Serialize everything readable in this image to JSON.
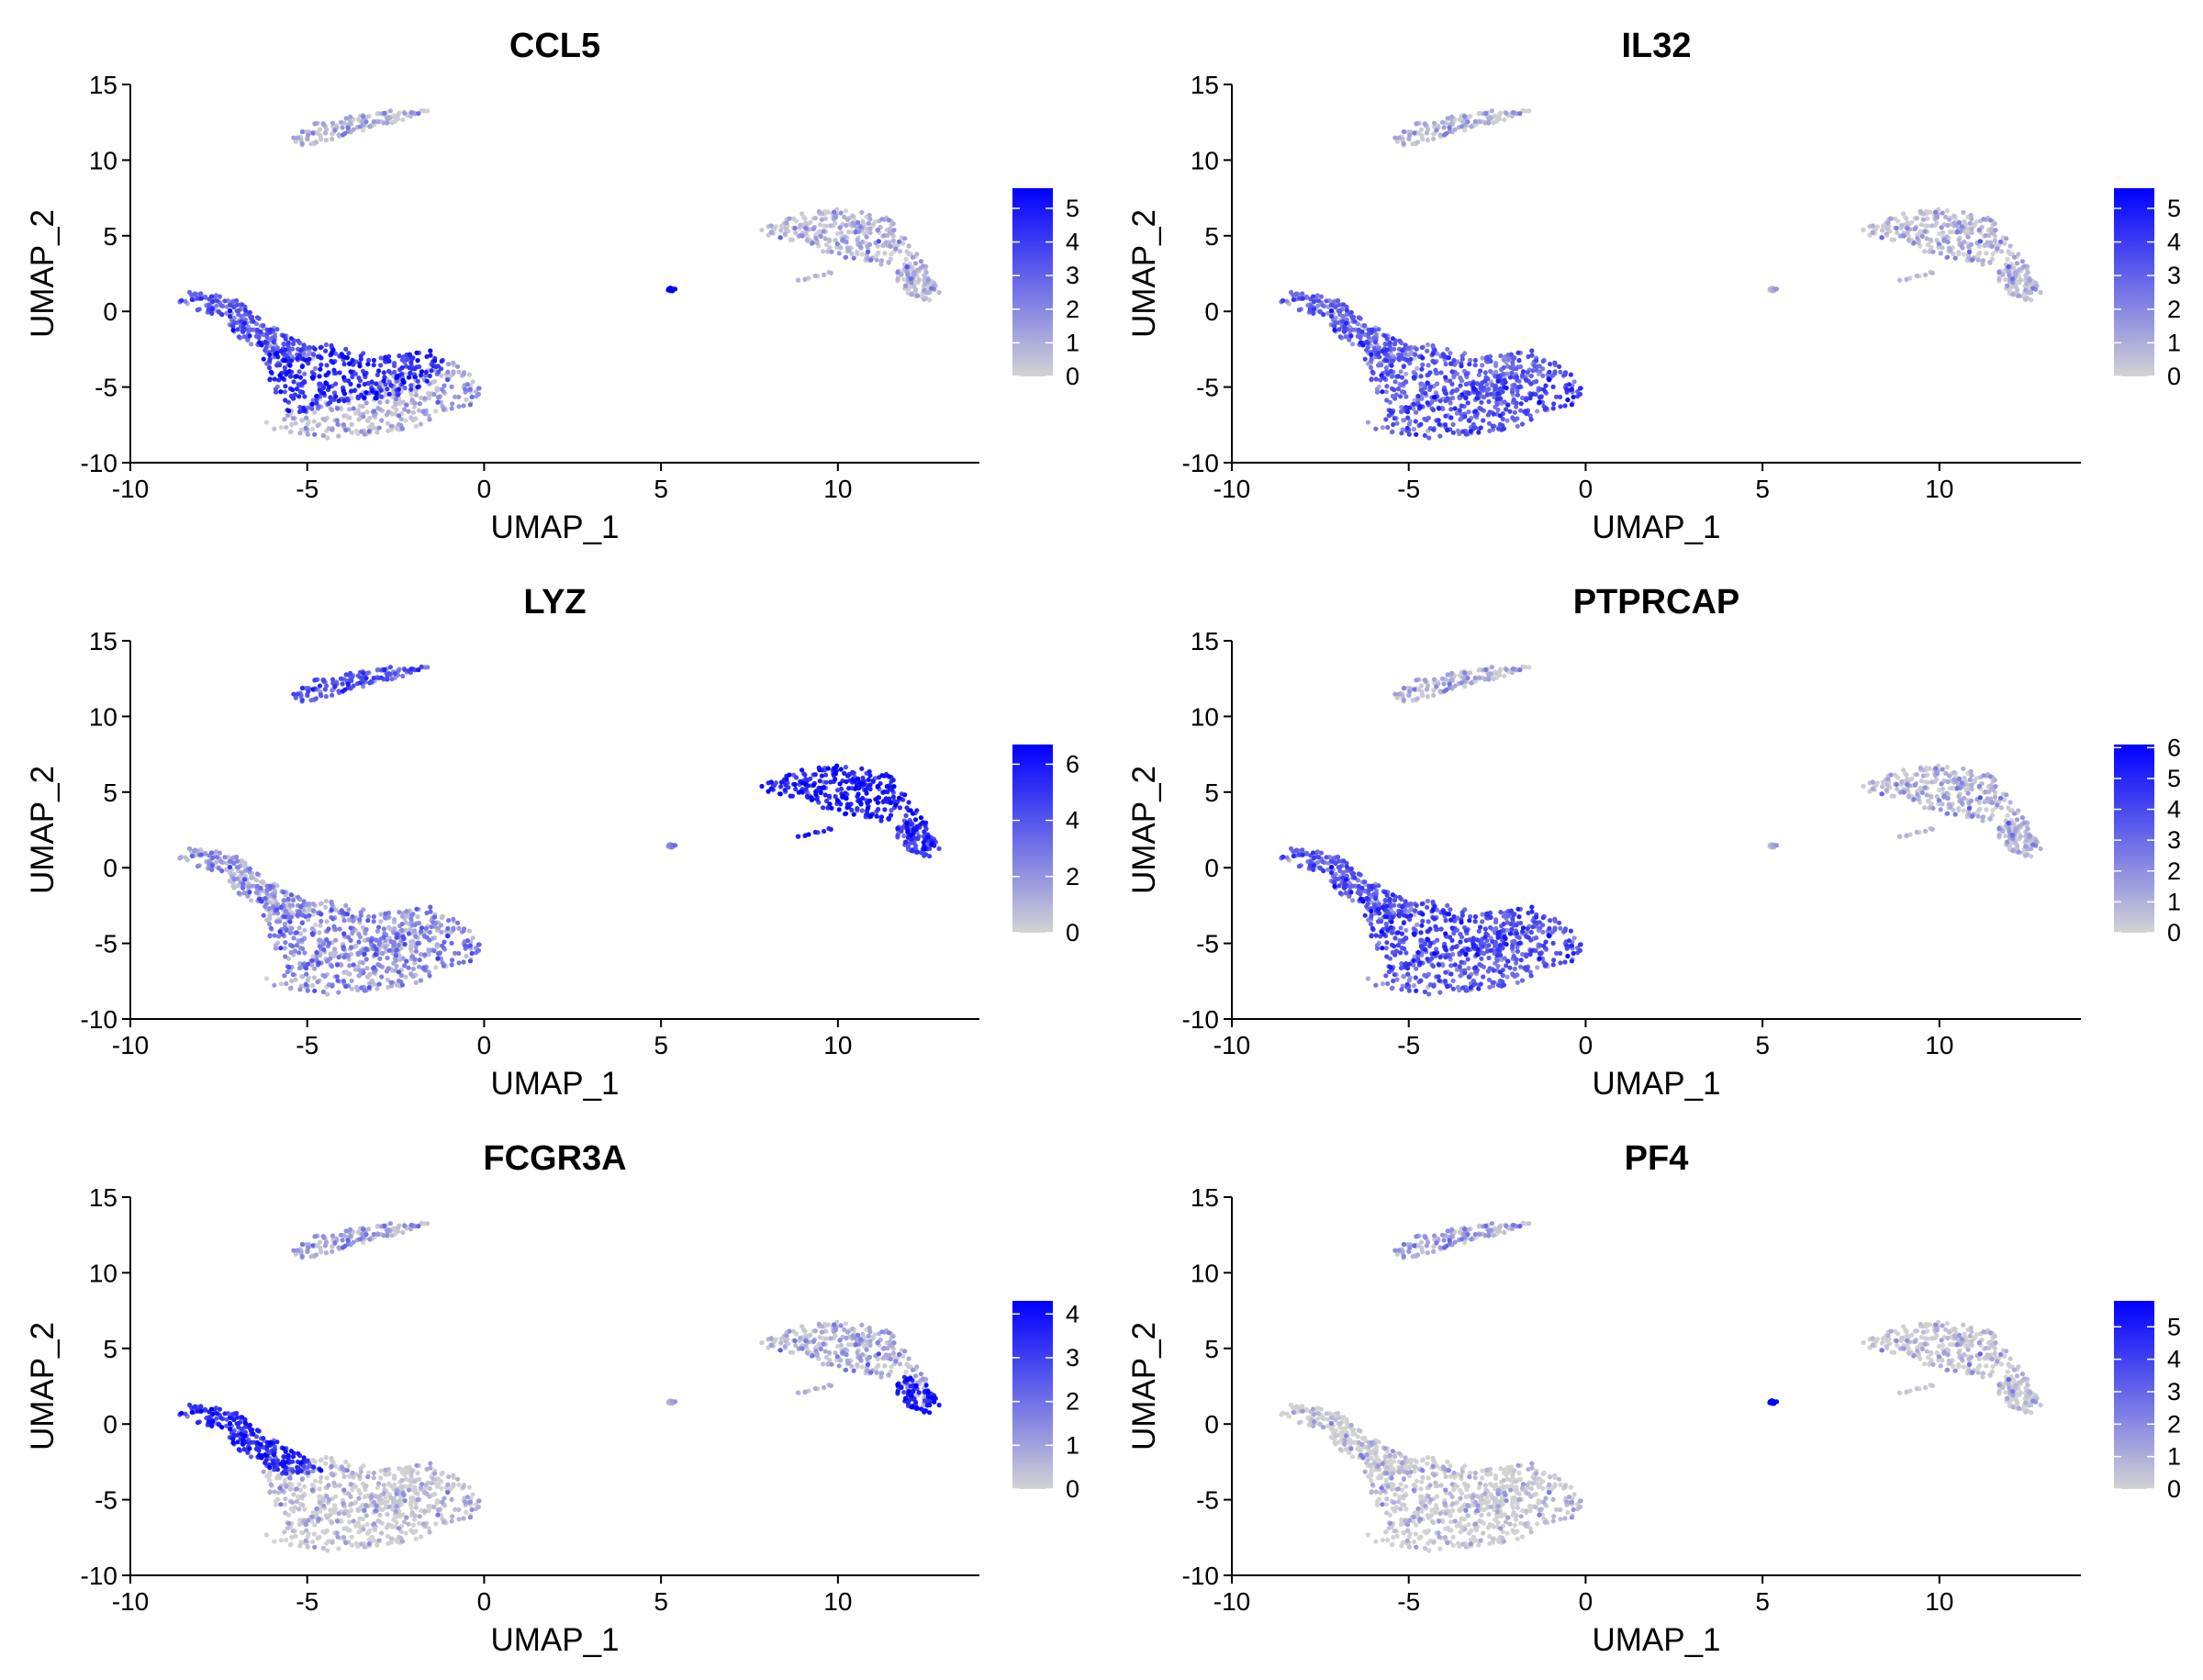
{
  "chart_data": [
    {
      "type": "scatter",
      "title": "CCL5",
      "xlabel": "UMAP_1",
      "ylabel": "UMAP_2",
      "xlim": [
        -10,
        14
      ],
      "ylim": [
        -10,
        15
      ],
      "x_ticks": [
        -10,
        -5,
        0,
        5,
        10
      ],
      "y_ticks": [
        -10,
        -5,
        0,
        5,
        10,
        15
      ],
      "grid": false,
      "legend_position": "right",
      "color_low": "#d3d3d3",
      "color_high": "#0000ff",
      "color_max": 5.6,
      "legend_ticks": [
        0,
        1,
        2,
        3,
        4,
        5
      ],
      "expression": {
        "A": 0.55,
        "B": 0.2,
        "C": 0.75,
        "D": 0.12,
        "E": 0.1,
        "F": 0.12,
        "G": 0.95
      }
    },
    {
      "type": "scatter",
      "title": "IL32",
      "xlabel": "UMAP_1",
      "ylabel": "UMAP_2",
      "xlim": [
        -10,
        14
      ],
      "ylim": [
        -10,
        15
      ],
      "x_ticks": [
        -10,
        -5,
        0,
        5,
        10
      ],
      "y_ticks": [
        -10,
        -5,
        0,
        5,
        10,
        15
      ],
      "grid": false,
      "legend_position": "right",
      "color_low": "#d3d3d3",
      "color_high": "#0000ff",
      "color_max": 5.6,
      "legend_ticks": [
        0,
        1,
        2,
        3,
        4,
        5
      ],
      "expression": {
        "A": 0.5,
        "B": 0.6,
        "C": 0.5,
        "D": 0.1,
        "E": 0.08,
        "F": 0.1,
        "G": 0.05
      }
    },
    {
      "type": "scatter",
      "title": "LYZ",
      "xlabel": "UMAP_1",
      "ylabel": "UMAP_2",
      "xlim": [
        -10,
        14
      ],
      "ylim": [
        -10,
        15
      ],
      "x_ticks": [
        -10,
        -5,
        0,
        5,
        10
      ],
      "y_ticks": [
        -10,
        -5,
        0,
        5,
        10,
        15
      ],
      "grid": false,
      "legend_position": "right",
      "color_low": "#d3d3d3",
      "color_high": "#0000ff",
      "color_max": 6.7,
      "legend_ticks": [
        0,
        2,
        4,
        6
      ],
      "expression": {
        "A": 0.3,
        "B": 0.35,
        "C": 0.35,
        "D": 0.82,
        "E": 0.62,
        "F": 0.55,
        "G": 0.25
      }
    },
    {
      "type": "scatter",
      "title": "PTPRCAP",
      "xlabel": "UMAP_1",
      "ylabel": "UMAP_2",
      "xlim": [
        -10,
        14
      ],
      "ylim": [
        -10,
        15
      ],
      "x_ticks": [
        -10,
        -5,
        0,
        5,
        10
      ],
      "y_ticks": [
        -10,
        -5,
        0,
        5,
        10,
        15
      ],
      "grid": false,
      "legend_position": "right",
      "color_low": "#d3d3d3",
      "color_high": "#0000ff",
      "color_max": 6.1,
      "legend_ticks": [
        0,
        1,
        2,
        3,
        4,
        5,
        6
      ],
      "expression": {
        "A": 0.55,
        "B": 0.55,
        "C": 0.62,
        "D": 0.12,
        "E": 0.12,
        "F": 0.12,
        "G": 0.05
      }
    },
    {
      "type": "scatter",
      "title": "FCGR3A",
      "xlabel": "UMAP_1",
      "ylabel": "UMAP_2",
      "xlim": [
        -10,
        14
      ],
      "ylim": [
        -10,
        15
      ],
      "x_ticks": [
        -10,
        -5,
        0,
        5,
        10
      ],
      "y_ticks": [
        -10,
        -5,
        0,
        5,
        10,
        15
      ],
      "grid": false,
      "legend_position": "right",
      "color_low": "#d3d3d3",
      "color_high": "#0000ff",
      "color_max": 4.3,
      "legend_ticks": [
        0,
        1,
        2,
        3,
        4
      ],
      "expression": {
        "A": 0.78,
        "B": 0.05,
        "C": 0.05,
        "D": 0.15,
        "E": 0.85,
        "F": 0.2,
        "G": 0.05
      }
    },
    {
      "type": "scatter",
      "title": "PF4",
      "xlabel": "UMAP_1",
      "ylabel": "UMAP_2",
      "xlim": [
        -10,
        14
      ],
      "ylim": [
        -10,
        15
      ],
      "x_ticks": [
        -10,
        -5,
        0,
        5,
        10
      ],
      "y_ticks": [
        -10,
        -5,
        0,
        5,
        10,
        15
      ],
      "grid": false,
      "legend_position": "right",
      "color_low": "#d3d3d3",
      "color_high": "#0000ff",
      "color_max": 5.8,
      "legend_ticks": [
        0,
        1,
        2,
        3,
        4,
        5
      ],
      "expression": {
        "A": 0.02,
        "B": 0.02,
        "C": 0.02,
        "D": 0.03,
        "E": 0.03,
        "F": 0.2,
        "G": 0.97
      }
    }
  ],
  "clusters": [
    {
      "id": "A",
      "points": 240,
      "shape": "polygon",
      "poly": [
        [
          -9,
          0.3
        ],
        [
          -9,
          1.3
        ],
        [
          -8,
          1.3
        ],
        [
          -7,
          0.8
        ],
        [
          -6.3,
          -0.6
        ],
        [
          -5.2,
          -2
        ],
        [
          -4.5,
          -3.2
        ],
        [
          -5.7,
          -3.3
        ],
        [
          -6.8,
          -2
        ],
        [
          -7.6,
          -0.2
        ],
        [
          -8.3,
          0.2
        ]
      ]
    },
    {
      "id": "B",
      "points": 320,
      "shape": "polygon",
      "poly": [
        [
          -6,
          -7.8
        ],
        [
          -4.5,
          -8.4
        ],
        [
          -2,
          -7.8
        ],
        [
          -1,
          -6.5
        ],
        [
          0,
          -6
        ],
        [
          -0.1,
          -4.5
        ],
        [
          -1,
          -3.2
        ],
        [
          -2.5,
          -4.2
        ],
        [
          -4,
          -5.2
        ],
        [
          -5.5,
          -6.5
        ],
        [
          -6.2,
          -7.3
        ]
      ]
    },
    {
      "id": "C",
      "points": 330,
      "shape": "polygon",
      "poly": [
        [
          -6.3,
          -3
        ],
        [
          -4.5,
          -2
        ],
        [
          -3,
          -3
        ],
        [
          -1.5,
          -2.6
        ],
        [
          -1,
          -3.5
        ],
        [
          -2,
          -5.5
        ],
        [
          -4,
          -6
        ],
        [
          -5.5,
          -6.8
        ],
        [
          -6,
          -5
        ]
      ]
    },
    {
      "id": "D",
      "points": 320,
      "shape": "polygon",
      "poly": [
        [
          7.8,
          5.5
        ],
        [
          9,
          6.5
        ],
        [
          10,
          6.8
        ],
        [
          11,
          6.5
        ],
        [
          11.5,
          6.2
        ],
        [
          12,
          4.5
        ],
        [
          12.5,
          3
        ],
        [
          12.7,
          1.5
        ],
        [
          12.4,
          1
        ],
        [
          11.5,
          3
        ],
        [
          10,
          3.5
        ],
        [
          9,
          4.6
        ],
        [
          8,
          5
        ]
      ]
    },
    {
      "id": "E",
      "points": 80,
      "shape": "polygon",
      "poly": [
        [
          11.8,
          3.2
        ],
        [
          12.5,
          2.8
        ],
        [
          12.9,
          1.2
        ],
        [
          12.5,
          0.6
        ],
        [
          11.9,
          1.3
        ],
        [
          11.6,
          2.3
        ]
      ]
    },
    {
      "id": "F",
      "points": 130,
      "shape": "polygon",
      "poly": [
        [
          -5.2,
          10.8
        ],
        [
          -4,
          11.6
        ],
        [
          -2.5,
          12.5
        ],
        [
          -1.5,
          13.3
        ],
        [
          -2.5,
          13.4
        ],
        [
          -3.5,
          13
        ],
        [
          -4.8,
          12.4
        ],
        [
          -5.4,
          11.5
        ]
      ]
    },
    {
      "id": "G",
      "points": 14,
      "shape": "ellipse",
      "cx": 5.3,
      "cy": 1.45,
      "rx": 0.12,
      "ry": 0.1
    }
  ],
  "streak": {
    "cluster": "D",
    "x0": 8.8,
    "y0": 2.0,
    "x1": 9.8,
    "y1": 2.6,
    "points": 10
  }
}
